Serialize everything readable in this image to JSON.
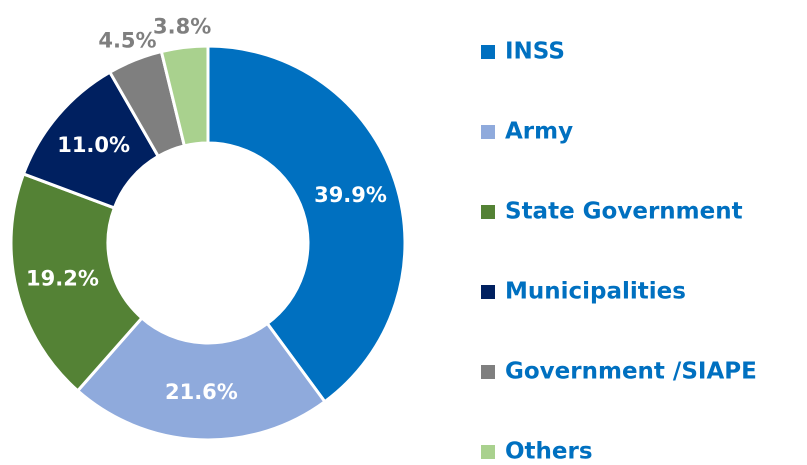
{
  "chart_data": {
    "type": "donut",
    "categories": [
      "INSS",
      "Army",
      "State Government",
      "Municipalities",
      "Government /SIAPE",
      "Others"
    ],
    "values": [
      39.9,
      21.6,
      19.2,
      11.0,
      4.5,
      3.8
    ],
    "value_labels": [
      "39.9%",
      "21.6%",
      "19.2%",
      "11.0%",
      "4.5%",
      "3.8%"
    ],
    "colors": [
      "#0070c0",
      "#8faadc",
      "#548235",
      "#002060",
      "#7f7f7f",
      "#a9d18e"
    ]
  }
}
